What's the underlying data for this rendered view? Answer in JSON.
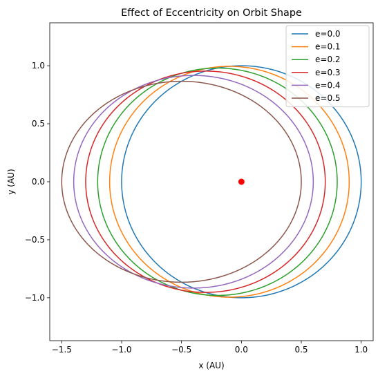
{
  "chart_data": {
    "type": "line",
    "title": "Effect of Eccentricity on Orbit Shape",
    "xlabel": "x (AU)",
    "ylabel": "y (AU)",
    "xlim": [
      -1.6,
      1.1
    ],
    "ylim": [
      -1.37,
      1.37
    ],
    "xticks": [
      -1.5,
      -1.0,
      -0.5,
      0.0,
      0.5,
      1.0
    ],
    "xtick_labels": [
      "−1.5",
      "−1.0",
      "−0.5",
      "0.0",
      "0.5",
      "1.0"
    ],
    "yticks": [
      -1.0,
      -0.5,
      0.0,
      0.5,
      1.0
    ],
    "ytick_labels": [
      "−1.0",
      "−0.5",
      "0.0",
      "0.5",
      "1.0"
    ],
    "grid": false,
    "legend_position": "top-right",
    "semi_major_axis": 1.0,
    "series": [
      {
        "name": "e=0.0",
        "eccentricity": 0.0,
        "color": "#1f77b4"
      },
      {
        "name": "e=0.1",
        "eccentricity": 0.1,
        "color": "#ff7f0e"
      },
      {
        "name": "e=0.2",
        "eccentricity": 0.2,
        "color": "#2ca02c"
      },
      {
        "name": "e=0.3",
        "eccentricity": 0.3,
        "color": "#d62728"
      },
      {
        "name": "e=0.4",
        "eccentricity": 0.4,
        "color": "#9467bd"
      },
      {
        "name": "e=0.5",
        "eccentricity": 0.5,
        "color": "#8c564b"
      }
    ],
    "central_body": {
      "x": 0.0,
      "y": 0.0,
      "color": "#ff0000"
    }
  }
}
